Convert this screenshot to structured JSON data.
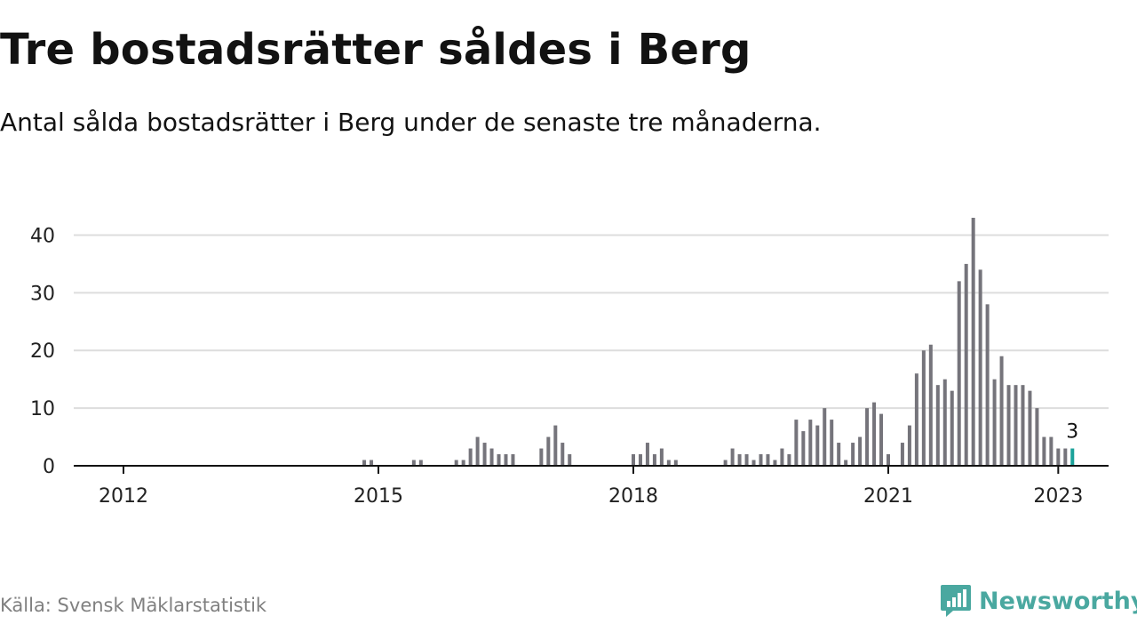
{
  "title": "Tre bostadsrätter såldes i Berg",
  "subtitle": "Antal sålda bostadsrätter i Berg under de senaste tre månaderna.",
  "source": "Källa: Svensk Mäklarstatistik",
  "brand": {
    "name": "Newsworthy",
    "icon": "newsworthy-logo-icon",
    "color": "#4aa8a0"
  },
  "colors": {
    "bar": "#75747b",
    "highlight": "#1ba29a",
    "grid": "#dddddd",
    "axis": "#121212",
    "tick_text": "#222222"
  },
  "chart_data": {
    "type": "bar",
    "title": "Tre bostadsrätter såldes i Berg",
    "subtitle": "Antal sålda bostadsrätter i Berg under de senaste tre månaderna.",
    "xlabel": "",
    "ylabel": "",
    "x_start": "2011-07",
    "x_end": "2023-06",
    "ylim": [
      0,
      43
    ],
    "y_ticks": [
      0,
      10,
      20,
      30,
      40
    ],
    "x_ticks": [
      {
        "label": "2012",
        "date": "2012-01"
      },
      {
        "label": "2015",
        "date": "2015-01"
      },
      {
        "label": "2018",
        "date": "2018-01"
      },
      {
        "label": "2021",
        "date": "2021-01"
      },
      {
        "label": "2023",
        "date": "2023-01"
      }
    ],
    "grid": true,
    "highlight_label": "3",
    "series": [
      {
        "values": [
          {
            "date": "2014-11",
            "value": 1
          },
          {
            "date": "2014-12",
            "value": 1
          },
          {
            "date": "2015-06",
            "value": 1
          },
          {
            "date": "2015-07",
            "value": 1
          },
          {
            "date": "2015-12",
            "value": 1
          },
          {
            "date": "2016-01",
            "value": 1
          },
          {
            "date": "2016-02",
            "value": 3
          },
          {
            "date": "2016-03",
            "value": 5
          },
          {
            "date": "2016-04",
            "value": 4
          },
          {
            "date": "2016-05",
            "value": 3
          },
          {
            "date": "2016-06",
            "value": 2
          },
          {
            "date": "2016-07",
            "value": 2
          },
          {
            "date": "2016-08",
            "value": 2
          },
          {
            "date": "2016-12",
            "value": 3
          },
          {
            "date": "2017-01",
            "value": 5
          },
          {
            "date": "2017-02",
            "value": 7
          },
          {
            "date": "2017-03",
            "value": 4
          },
          {
            "date": "2017-04",
            "value": 2
          },
          {
            "date": "2018-01",
            "value": 2
          },
          {
            "date": "2018-02",
            "value": 2
          },
          {
            "date": "2018-03",
            "value": 4
          },
          {
            "date": "2018-04",
            "value": 2
          },
          {
            "date": "2018-05",
            "value": 3
          },
          {
            "date": "2018-06",
            "value": 1
          },
          {
            "date": "2018-07",
            "value": 1
          },
          {
            "date": "2019-02",
            "value": 1
          },
          {
            "date": "2019-03",
            "value": 3
          },
          {
            "date": "2019-04",
            "value": 2
          },
          {
            "date": "2019-05",
            "value": 2
          },
          {
            "date": "2019-06",
            "value": 1
          },
          {
            "date": "2019-07",
            "value": 2
          },
          {
            "date": "2019-08",
            "value": 2
          },
          {
            "date": "2019-09",
            "value": 1
          },
          {
            "date": "2019-10",
            "value": 3
          },
          {
            "date": "2019-11",
            "value": 2
          },
          {
            "date": "2019-12",
            "value": 8
          },
          {
            "date": "2020-01",
            "value": 6
          },
          {
            "date": "2020-02",
            "value": 8
          },
          {
            "date": "2020-03",
            "value": 7
          },
          {
            "date": "2020-04",
            "value": 10
          },
          {
            "date": "2020-05",
            "value": 8
          },
          {
            "date": "2020-06",
            "value": 4
          },
          {
            "date": "2020-07",
            "value": 1
          },
          {
            "date": "2020-08",
            "value": 4
          },
          {
            "date": "2020-09",
            "value": 5
          },
          {
            "date": "2020-10",
            "value": 10
          },
          {
            "date": "2020-11",
            "value": 11
          },
          {
            "date": "2020-12",
            "value": 9
          },
          {
            "date": "2021-01",
            "value": 2
          },
          {
            "date": "2021-03",
            "value": 4
          },
          {
            "date": "2021-04",
            "value": 7
          },
          {
            "date": "2021-05",
            "value": 16
          },
          {
            "date": "2021-06",
            "value": 20
          },
          {
            "date": "2021-07",
            "value": 21
          },
          {
            "date": "2021-08",
            "value": 14
          },
          {
            "date": "2021-09",
            "value": 15
          },
          {
            "date": "2021-10",
            "value": 13
          },
          {
            "date": "2021-11",
            "value": 32
          },
          {
            "date": "2021-12",
            "value": 35
          },
          {
            "date": "2022-01",
            "value": 43
          },
          {
            "date": "2022-02",
            "value": 34
          },
          {
            "date": "2022-03",
            "value": 28
          },
          {
            "date": "2022-04",
            "value": 15
          },
          {
            "date": "2022-05",
            "value": 19
          },
          {
            "date": "2022-06",
            "value": 14
          },
          {
            "date": "2022-07",
            "value": 14
          },
          {
            "date": "2022-08",
            "value": 14
          },
          {
            "date": "2022-09",
            "value": 13
          },
          {
            "date": "2022-10",
            "value": 10
          },
          {
            "date": "2022-11",
            "value": 5
          },
          {
            "date": "2022-12",
            "value": 5
          },
          {
            "date": "2023-01",
            "value": 3
          },
          {
            "date": "2023-02",
            "value": 3
          },
          {
            "date": "2023-03",
            "value": 3,
            "highlight": true
          }
        ]
      }
    ]
  }
}
